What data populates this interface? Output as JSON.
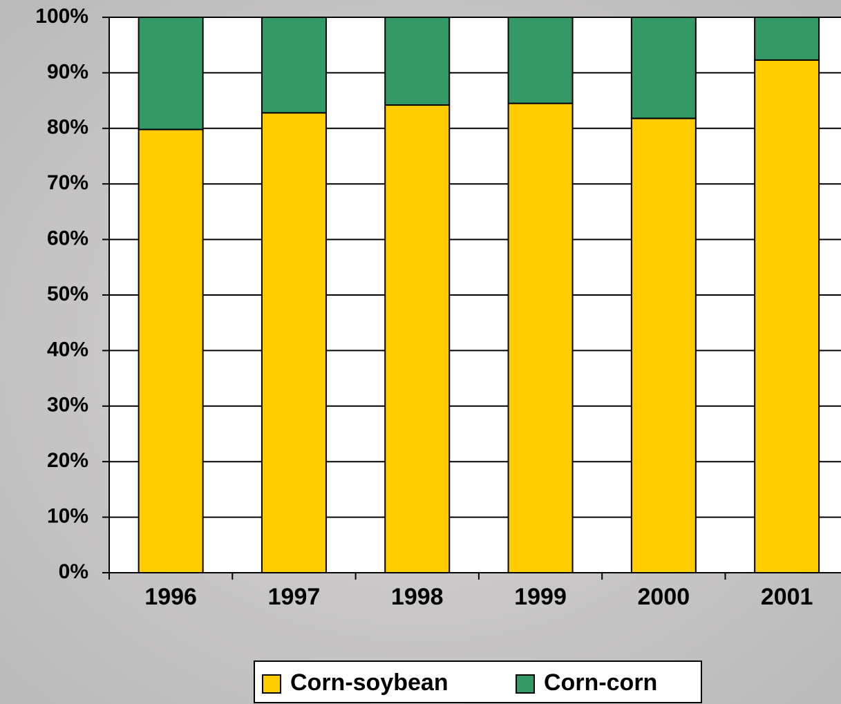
{
  "chart_data": {
    "type": "stacked_bar",
    "categories": [
      "1996",
      "1997",
      "1998",
      "1999",
      "2000",
      "2001"
    ],
    "series": [
      {
        "name": "Corn-soybean",
        "color": "#ffcc00",
        "values": [
          79.8,
          82.8,
          84.2,
          84.5,
          81.8,
          92.3
        ]
      },
      {
        "name": "Corn-corn",
        "color": "#339966",
        "values": [
          20.2,
          17.2,
          15.8,
          15.5,
          18.2,
          7.7
        ]
      }
    ],
    "ylim": [
      0,
      100
    ],
    "yticks": [
      {
        "value": 0,
        "label": "0%"
      },
      {
        "value": 10,
        "label": "10%"
      },
      {
        "value": 20,
        "label": "20%"
      },
      {
        "value": 30,
        "label": "30%"
      },
      {
        "value": 40,
        "label": "40%"
      },
      {
        "value": 50,
        "label": "50%"
      },
      {
        "value": 60,
        "label": "60%"
      },
      {
        "value": 70,
        "label": "70%"
      },
      {
        "value": 80,
        "label": "80%"
      },
      {
        "value": 90,
        "label": "90%"
      },
      {
        "value": 100,
        "label": "100%"
      }
    ],
    "grid": true,
    "legend": "bottom"
  }
}
